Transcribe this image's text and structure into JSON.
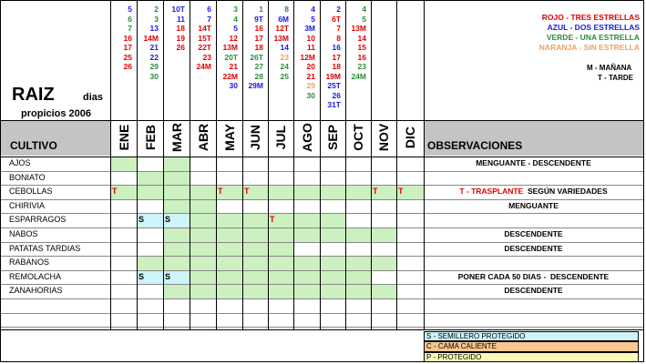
{
  "title": {
    "main": "RAIZ",
    "dias": "dias",
    "sub": "propicios 2006"
  },
  "header": {
    "cultivo": "CULTIVO",
    "observaciones": "OBSERVACIONES"
  },
  "months": [
    "ENE",
    "FEB",
    "MAR",
    "ABR",
    "MAY",
    "JUN",
    "JUL",
    "AGO",
    "SEP",
    "OCT",
    "NOV",
    "DIC"
  ],
  "legend_top": [
    {
      "text": "ROJO -  TRES ESTRELLAS",
      "color": "#e00000"
    },
    {
      "text": "AZUL - DOS ESTRELLAS",
      "color": "#1a1adc"
    },
    {
      "text": "VERDE - UNA ESTRELLA",
      "color": "#2e8b3c"
    },
    {
      "text": "NARANJA - SIN ESTRELLA",
      "color": "#f0a060"
    }
  ],
  "legend_time": {
    "m": "M - MAÑANA",
    "t": "T - TARDE"
  },
  "legend_bottom": [
    {
      "text": "S - SEMILLERO PROTEGIDO",
      "color": "#cdf4f8"
    },
    {
      "text": "C - CAMA CALIENTE",
      "color": "#f8c690"
    },
    {
      "text": "P - PROTEGIDO",
      "color": "#fbfbb8"
    }
  ],
  "colors": {
    "green": "#ccf0c0",
    "cyan": "#cdf4f8",
    "gray": "#c4c4c4",
    "red": "#e00000",
    "blue": "#1a1adc",
    "darkgreen": "#2e8b3c",
    "orange": "#f0a060"
  },
  "days": [
    [
      {
        "t": "5",
        "c": "b"
      },
      {
        "t": "6",
        "c": "g"
      },
      {
        "t": "7",
        "c": "g"
      },
      {
        "t": "16",
        "c": "r"
      },
      {
        "t": "17",
        "c": "r"
      },
      {
        "t": "25",
        "c": "r"
      },
      {
        "t": "26",
        "c": "r"
      }
    ],
    [
      {
        "t": "2",
        "c": "g"
      },
      {
        "t": "3",
        "c": "g"
      },
      {
        "t": "13",
        "c": "b"
      },
      {
        "t": "14M",
        "c": "r"
      },
      {
        "t": "21",
        "c": "b"
      },
      {
        "t": "22",
        "c": "b"
      },
      {
        "t": "29",
        "c": "g"
      },
      {
        "t": "30",
        "c": "g"
      }
    ],
    [
      {
        "t": "10T",
        "c": "b"
      },
      {
        "t": "11",
        "c": "b"
      },
      {
        "t": "18",
        "c": "r"
      },
      {
        "t": "19",
        "c": "r"
      },
      {
        "t": "26",
        "c": "r"
      }
    ],
    [
      {
        "t": "6",
        "c": "b"
      },
      {
        "t": "7",
        "c": "b"
      },
      {
        "t": "14T",
        "c": "r"
      },
      {
        "t": "15T",
        "c": "r"
      },
      {
        "t": "22T",
        "c": "r"
      },
      {
        "t": "23",
        "c": "r"
      },
      {
        "t": "24M",
        "c": "r"
      }
    ],
    [
      {
        "t": "3",
        "c": "g"
      },
      {
        "t": "4",
        "c": "g"
      },
      {
        "t": "5",
        "c": "b"
      },
      {
        "t": "12",
        "c": "r"
      },
      {
        "t": "13M",
        "c": "r"
      },
      {
        "t": "20T",
        "c": "g"
      },
      {
        "t": "21",
        "c": "r"
      },
      {
        "t": "22M",
        "c": "r"
      },
      {
        "t": "30",
        "c": "b"
      }
    ],
    [
      {
        "t": "1",
        "c": "g"
      },
      {
        "t": "9T",
        "c": "b"
      },
      {
        "t": "16",
        "c": "r"
      },
      {
        "t": "17",
        "c": "r"
      },
      {
        "t": "18",
        "c": "r"
      },
      {
        "t": "26T",
        "c": "g"
      },
      {
        "t": "27",
        "c": "g"
      },
      {
        "t": "28",
        "c": "g"
      },
      {
        "t": "29M",
        "c": "b"
      }
    ],
    [
      {
        "t": "8",
        "c": "g"
      },
      {
        "t": "6M",
        "c": "b"
      },
      {
        "t": "12T",
        "c": "r"
      },
      {
        "t": "13M",
        "c": "r"
      },
      {
        "t": "14",
        "c": "b"
      },
      {
        "t": "23",
        "c": "o"
      },
      {
        "t": "24",
        "c": "g"
      },
      {
        "t": "25",
        "c": "g"
      }
    ],
    [
      {
        "t": "4",
        "c": "b"
      },
      {
        "t": "5",
        "c": "b"
      },
      {
        "t": "3M",
        "c": "b"
      },
      {
        "t": "10",
        "c": "r"
      },
      {
        "t": "11",
        "c": "r"
      },
      {
        "t": "12M",
        "c": "r"
      },
      {
        "t": "20",
        "c": "r"
      },
      {
        "t": "21",
        "c": "r"
      },
      {
        "t": "29",
        "c": "o"
      },
      {
        "t": "30",
        "c": "g"
      }
    ],
    [
      {
        "t": "2",
        "c": "b"
      },
      {
        "t": "6T",
        "c": "r"
      },
      {
        "t": "7",
        "c": "r"
      },
      {
        "t": "8",
        "c": "r"
      },
      {
        "t": "16",
        "c": "b"
      },
      {
        "t": "17",
        "c": "r"
      },
      {
        "t": "18",
        "c": "r"
      },
      {
        "t": "19M",
        "c": "r"
      },
      {
        "t": "25T",
        "c": "b"
      },
      {
        "t": "26",
        "c": "b"
      },
      {
        "t": "31T",
        "c": "b"
      }
    ],
    [
      {
        "t": "4",
        "c": "g"
      },
      {
        "t": "5",
        "c": "g"
      },
      {
        "t": "13M",
        "c": "r"
      },
      {
        "t": "14",
        "c": "r"
      },
      {
        "t": "15",
        "c": "r"
      },
      {
        "t": "16",
        "c": "r"
      },
      {
        "t": "23",
        "c": "g"
      },
      {
        "t": "24M",
        "c": "g"
      }
    ]
  ],
  "rows": [
    {
      "name": "AJOS",
      "obs": [
        {
          "t": "MENGUANTE - DESCENDENTE",
          "c": "k"
        }
      ]
    },
    {
      "name": "BONIATO",
      "obs": []
    },
    {
      "name": "CEBOLLAS",
      "obs": [
        {
          "t": "T - TRASPLANTE",
          "c": "r"
        },
        {
          "t": "  SEGÚN VARIEDADES",
          "c": "k"
        }
      ]
    },
    {
      "name": "CHIRIVIA",
      "obs": [
        {
          "t": "MENGUANTE",
          "c": "k"
        }
      ]
    },
    {
      "name": "ESPARRAGOS",
      "obs": []
    },
    {
      "name": "NABOS",
      "obs": [
        {
          "t": "DESCENDENTE",
          "c": "k"
        }
      ]
    },
    {
      "name": "PATATAS TARDIAS",
      "obs": [
        {
          "t": "DESCENDENTE",
          "c": "k"
        }
      ]
    },
    {
      "name": "RABANOS",
      "obs": []
    },
    {
      "name": "REMOLACHA",
      "obs": [
        {
          "t": "PONER CADA 50 DIAS -  DESCENDENTE",
          "c": "k"
        }
      ]
    },
    {
      "name": "ZANAHORIAS",
      "obs": [
        {
          "t": "DESCENDENTE",
          "c": "k"
        }
      ]
    },
    {
      "name": "",
      "obs": []
    },
    {
      "name": "",
      "obs": []
    }
  ],
  "fills": [
    {
      "row": 0,
      "months": [
        0,
        2
      ]
    },
    {
      "row": 1,
      "months": [
        1,
        2
      ]
    },
    {
      "row": 2,
      "months": [
        0,
        1,
        2,
        3,
        4,
        5,
        6,
        7,
        8,
        9,
        10,
        11
      ]
    },
    {
      "row": 3,
      "months": [
        2,
        3
      ]
    },
    {
      "row": 4,
      "months": [
        1,
        3,
        4,
        5,
        6,
        7,
        8
      ]
    },
    {
      "row": 5,
      "months": [
        2,
        3,
        4,
        5,
        6,
        7,
        8,
        9,
        10
      ]
    },
    {
      "row": 6,
      "months": [
        2,
        3,
        4,
        5,
        6
      ]
    },
    {
      "row": 7,
      "months": [
        1,
        2,
        3,
        4,
        5,
        6,
        7,
        8,
        9,
        10
      ]
    },
    {
      "row": 8,
      "months": [
        1,
        2,
        3,
        4,
        5,
        6,
        7,
        8,
        9
      ]
    },
    {
      "row": 9,
      "months": [
        2,
        3,
        4,
        5,
        6,
        7,
        8,
        9,
        10
      ]
    }
  ],
  "cyan": [
    {
      "row": 4,
      "months": [
        1,
        2
      ]
    },
    {
      "row": 8,
      "months": [
        1,
        2
      ]
    }
  ],
  "marks": [
    {
      "row": 2,
      "month": 0,
      "t": "T",
      "c": "r"
    },
    {
      "row": 2,
      "month": 4,
      "t": "T",
      "c": "r"
    },
    {
      "row": 2,
      "month": 5,
      "t": "T",
      "c": "r"
    },
    {
      "row": 2,
      "month": 10,
      "t": "T",
      "c": "r"
    },
    {
      "row": 2,
      "month": 11,
      "t": "T",
      "c": "r"
    },
    {
      "row": 4,
      "month": 1,
      "t": "S",
      "c": "k"
    },
    {
      "row": 4,
      "month": 2,
      "t": "S",
      "c": "k"
    },
    {
      "row": 4,
      "month": 6,
      "t": "T",
      "c": "r"
    },
    {
      "row": 8,
      "month": 1,
      "t": "S",
      "c": "k"
    },
    {
      "row": 8,
      "month": 2,
      "t": "S",
      "c": "k"
    }
  ]
}
